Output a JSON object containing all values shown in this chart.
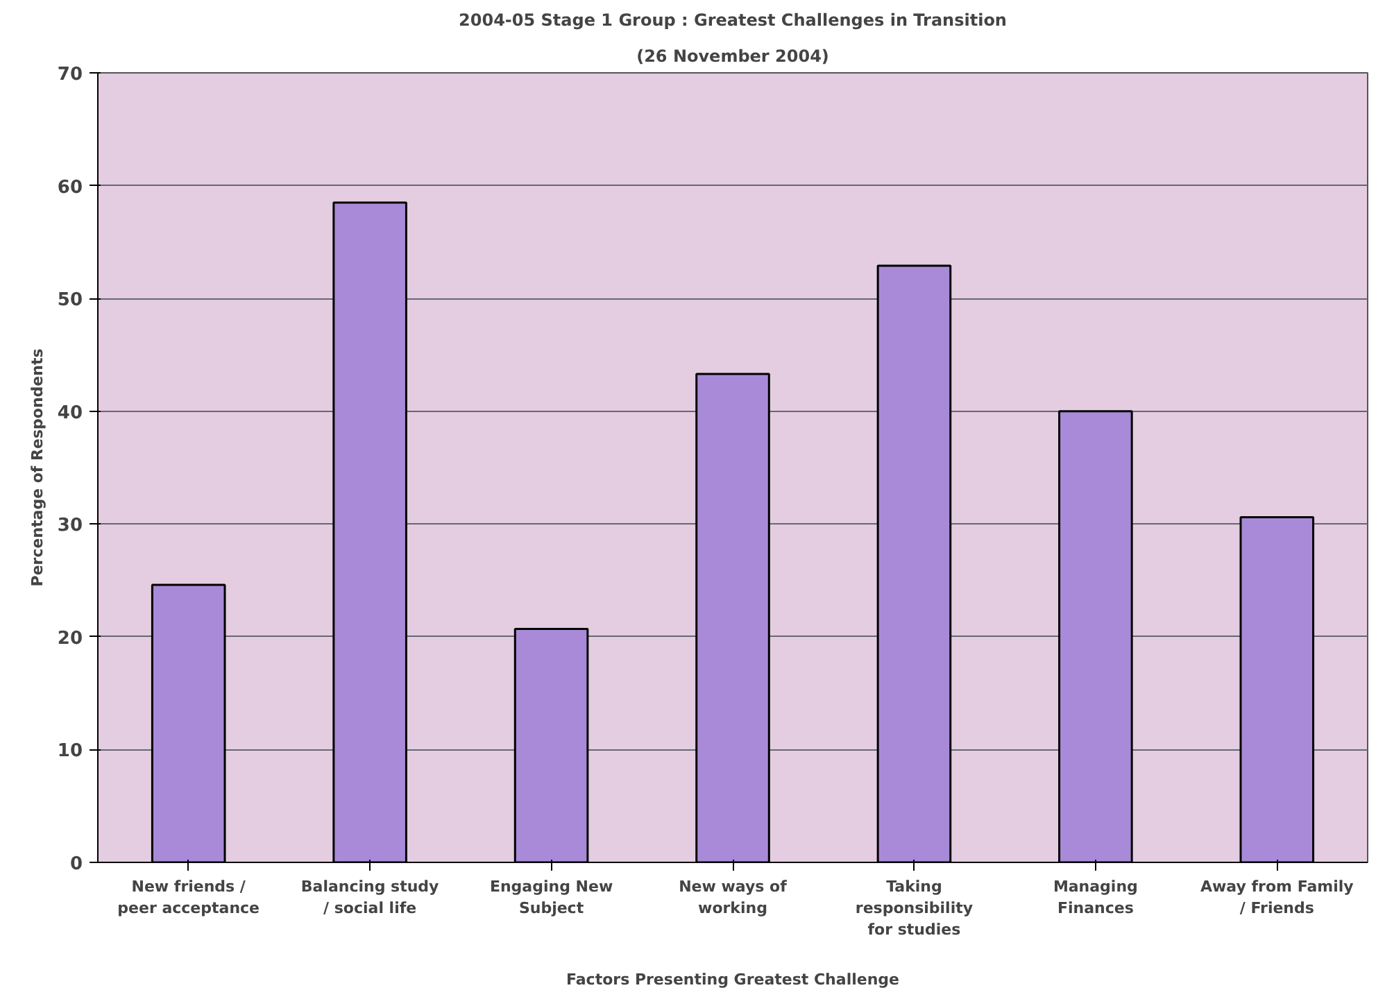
{
  "chart_data": {
    "type": "bar",
    "title": "2004-05 Stage 1 Group : Greatest Challenges in Transition",
    "subtitle": "(26 November 2004)",
    "xlabel": "Factors Presenting Greatest Challenge",
    "ylabel": "Percentage of Respondents",
    "categories": [
      "New friends / peer acceptance",
      "Balancing study / social life",
      "Engaging New Subject",
      "New ways of working",
      "Taking responsibility for studies",
      "Managing Finances",
      "Away from Family / Friends"
    ],
    "values": [
      24.6,
      58.5,
      20.7,
      43.3,
      52.9,
      40,
      30.6
    ],
    "color": "#a98ad8",
    "ylim": [
      0,
      70
    ],
    "yticks": [
      0,
      10,
      20,
      30,
      40,
      50,
      60,
      70
    ],
    "grid": "y"
  }
}
